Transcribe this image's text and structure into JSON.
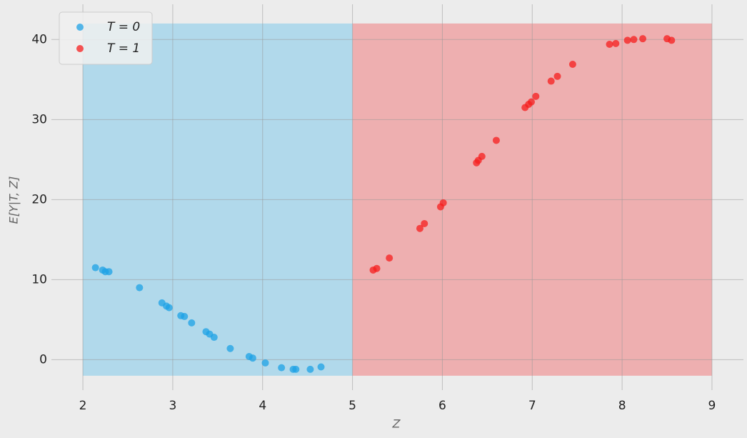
{
  "chart_data": {
    "type": "scatter",
    "xlabel": "Z",
    "ylabel": "E[Y|T, Z]",
    "xlim": [
      1.65,
      9.35
    ],
    "ylim": [
      -3.8,
      44.4
    ],
    "xticks": [
      2,
      3,
      4,
      5,
      6,
      7,
      8,
      9
    ],
    "yticks": [
      0,
      10,
      20,
      30,
      40
    ],
    "grid": true,
    "legend": "upper left",
    "regions": [
      {
        "x": [
          2,
          5
        ],
        "y": [
          -2,
          42
        ],
        "color": "#b1d9eb"
      },
      {
        "x": [
          5,
          9
        ],
        "y": [
          -2,
          42
        ],
        "color": "#eeafb0"
      }
    ],
    "series": [
      {
        "name": "T = 0",
        "color": "#1ea2e6",
        "x": [
          2.14,
          2.22,
          2.25,
          2.29,
          2.63,
          2.88,
          2.93,
          2.96,
          3.09,
          3.13,
          3.21,
          3.37,
          3.41,
          3.46,
          3.64,
          3.85,
          3.89,
          4.03,
          4.21,
          4.34,
          4.37,
          4.53,
          4.65
        ],
        "values": [
          11.5,
          11.2,
          11.0,
          11.0,
          9.0,
          7.1,
          6.7,
          6.5,
          5.5,
          5.4,
          4.6,
          3.5,
          3.2,
          2.8,
          1.4,
          0.4,
          0.2,
          -0.4,
          -1.0,
          -1.2,
          -1.2,
          -1.2,
          -0.9
        ]
      },
      {
        "name": "T = 1",
        "color": "#f51e1e",
        "x": [
          5.23,
          5.27,
          5.41,
          5.75,
          5.8,
          5.98,
          6.01,
          6.38,
          6.4,
          6.44,
          6.6,
          6.92,
          6.96,
          6.99,
          7.04,
          7.21,
          7.28,
          7.45,
          7.86,
          7.93,
          8.06,
          8.13,
          8.23,
          8.5,
          8.55
        ],
        "values": [
          11.2,
          11.4,
          12.7,
          16.4,
          17.0,
          19.1,
          19.6,
          24.6,
          24.9,
          25.4,
          27.4,
          31.5,
          31.9,
          32.2,
          32.9,
          34.8,
          35.4,
          36.9,
          39.4,
          39.5,
          39.9,
          40.0,
          40.1,
          40.1,
          39.9
        ]
      }
    ]
  }
}
